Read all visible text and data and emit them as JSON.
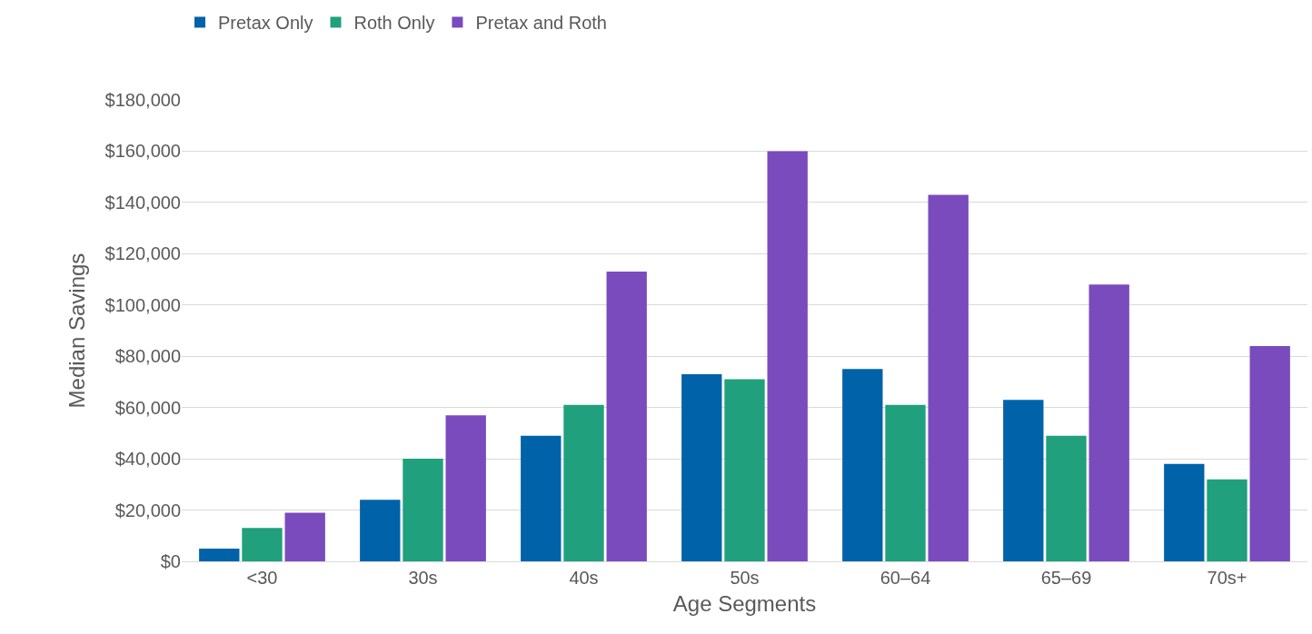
{
  "chart_data": {
    "type": "bar",
    "xlabel": "Age Segments",
    "ylabel": "Median Savings",
    "categories": [
      "<30",
      "30s",
      "40s",
      "50s",
      "60–64",
      "65–69",
      "70s+"
    ],
    "series": [
      {
        "name": "Pretax Only",
        "color": "#0062a8",
        "values": [
          5000,
          24000,
          49000,
          73000,
          75000,
          63000,
          38000
        ]
      },
      {
        "name": "Roth Only",
        "color": "#21a07d",
        "values": [
          13000,
          40000,
          61000,
          71000,
          61000,
          49000,
          32000
        ]
      },
      {
        "name": "Pretax and Roth",
        "color": "#7a4bbd",
        "values": [
          19000,
          57000,
          113000,
          160000,
          143000,
          108000,
          84000
        ]
      }
    ],
    "ylim": [
      0,
      180000
    ],
    "yticks": [
      {
        "value": 0,
        "label": "$0"
      },
      {
        "value": 20000,
        "label": "$20,000"
      },
      {
        "value": 40000,
        "label": "$40,000"
      },
      {
        "value": 60000,
        "label": "$60,000"
      },
      {
        "value": 80000,
        "label": "$80,000"
      },
      {
        "value": 100000,
        "label": "$100,000"
      },
      {
        "value": 120000,
        "label": "$120,000"
      },
      {
        "value": 140000,
        "label": "$140,000"
      },
      {
        "value": 160000,
        "label": "$160,000"
      },
      {
        "value": 180000,
        "label": "$180,000"
      }
    ],
    "grid": "y",
    "legend": "top left"
  }
}
